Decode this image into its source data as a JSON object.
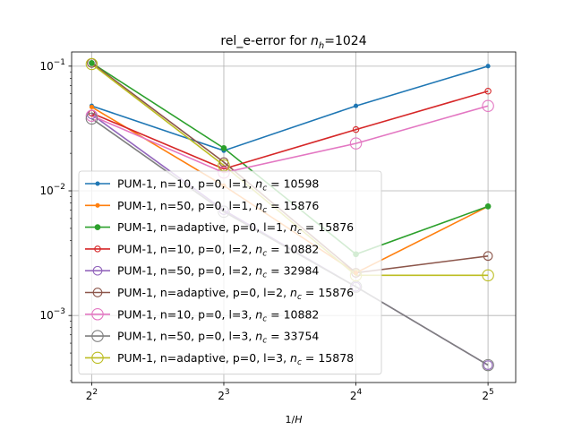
{
  "chart_data": {
    "type": "line",
    "title_text": "rel_e-error for ",
    "title_math_base": "n",
    "title_math_sub": "h",
    "title_value": "=1024",
    "xlabel_base": "1/",
    "xlabel_var": "H",
    "ylabel": "",
    "x_scale": "log2",
    "y_scale": "log10",
    "x": [
      4,
      8,
      16,
      32
    ],
    "xlim": [
      3.6,
      37
    ],
    "ylim": [
      0.00029,
      0.13
    ],
    "x_ticks": [
      {
        "value": 4,
        "base": "2",
        "exp": "2"
      },
      {
        "value": 8,
        "base": "2",
        "exp": "3"
      },
      {
        "value": 16,
        "base": "2",
        "exp": "4"
      },
      {
        "value": 32,
        "base": "2",
        "exp": "5"
      }
    ],
    "y_ticks": [
      {
        "value": 0.001,
        "base": "10",
        "exp": "−3"
      },
      {
        "value": 0.01,
        "base": "10",
        "exp": "−2"
      },
      {
        "value": 0.1,
        "base": "10",
        "exp": "−1"
      }
    ],
    "grid": true,
    "legend_position": "lower-left",
    "series": [
      {
        "name": "PUM-1, n=10, p=0, l=1, n_c=10598",
        "label_text": "PUM-1, n=10, p=0, l=1, ",
        "label_value": "10598",
        "color": "#1f77b4",
        "marker": "dot-small",
        "values": [
          0.048,
          0.021,
          0.048,
          0.1
        ]
      },
      {
        "name": "PUM-1, n=50, p=0, l=1, n_c=15876",
        "label_text": "PUM-1, n=50, p=0, l=1, ",
        "label_value": "15876",
        "color": "#ff7f0e",
        "marker": "dot-small",
        "values": [
          0.047,
          0.011,
          0.0022,
          0.0075
        ]
      },
      {
        "name": "PUM-1, n=adaptive, p=0, l=1, n_c=15876",
        "label_text": "PUM-1, n=adaptive, p=0, l=1, ",
        "label_value": "15876",
        "color": "#2ca02c",
        "marker": "dot-medium",
        "values": [
          0.106,
          0.022,
          0.0031,
          0.0075
        ]
      },
      {
        "name": "PUM-1, n=10, p=0, l=2, n_c=10882",
        "label_text": "PUM-1, n=10, p=0, l=2, ",
        "label_value": "10882",
        "color": "#d62728",
        "marker": "circle-open-medium",
        "values": [
          0.042,
          0.015,
          0.031,
          0.063
        ]
      },
      {
        "name": "PUM-1, n=50, p=0, l=2, n_c=32984",
        "label_text": "PUM-1, n=50, p=0, l=2, ",
        "label_value": "32984",
        "color": "#9467bd",
        "marker": "circle-open-large",
        "values": [
          0.041,
          0.007,
          0.0017,
          0.0004
        ]
      },
      {
        "name": "PUM-1, n=adaptive, p=0, l=2, n_c=15876",
        "label_text": "PUM-1, n=adaptive, p=0, l=2, ",
        "label_value": "15876",
        "color": "#8c564b",
        "marker": "circle-open-large",
        "values": [
          0.106,
          0.017,
          0.0022,
          0.003
        ]
      },
      {
        "name": "PUM-1, n=10, p=0, l=3, n_c=10882",
        "label_text": "PUM-1, n=10, p=0, l=3, ",
        "label_value": "10882",
        "color": "#e377c2",
        "marker": "circle-open-xlarge",
        "values": [
          0.04,
          0.014,
          0.024,
          0.048
        ]
      },
      {
        "name": "PUM-1, n=50, p=0, l=3, n_c=33754",
        "label_text": "PUM-1, n=50, p=0, l=3, ",
        "label_value": "33754",
        "color": "#7f7f7f",
        "marker": "circle-open-xlarge",
        "values": [
          0.038,
          0.0068,
          0.0017,
          0.0004
        ]
      },
      {
        "name": "PUM-1, n=adaptive, p=0, l=3, n_c=15878",
        "label_text": "PUM-1, n=adaptive, p=0, l=3, ",
        "label_value": "15878",
        "color": "#bcbd22",
        "marker": "circle-open-xlarge",
        "values": [
          0.104,
          0.016,
          0.0021,
          0.0021
        ]
      }
    ]
  }
}
